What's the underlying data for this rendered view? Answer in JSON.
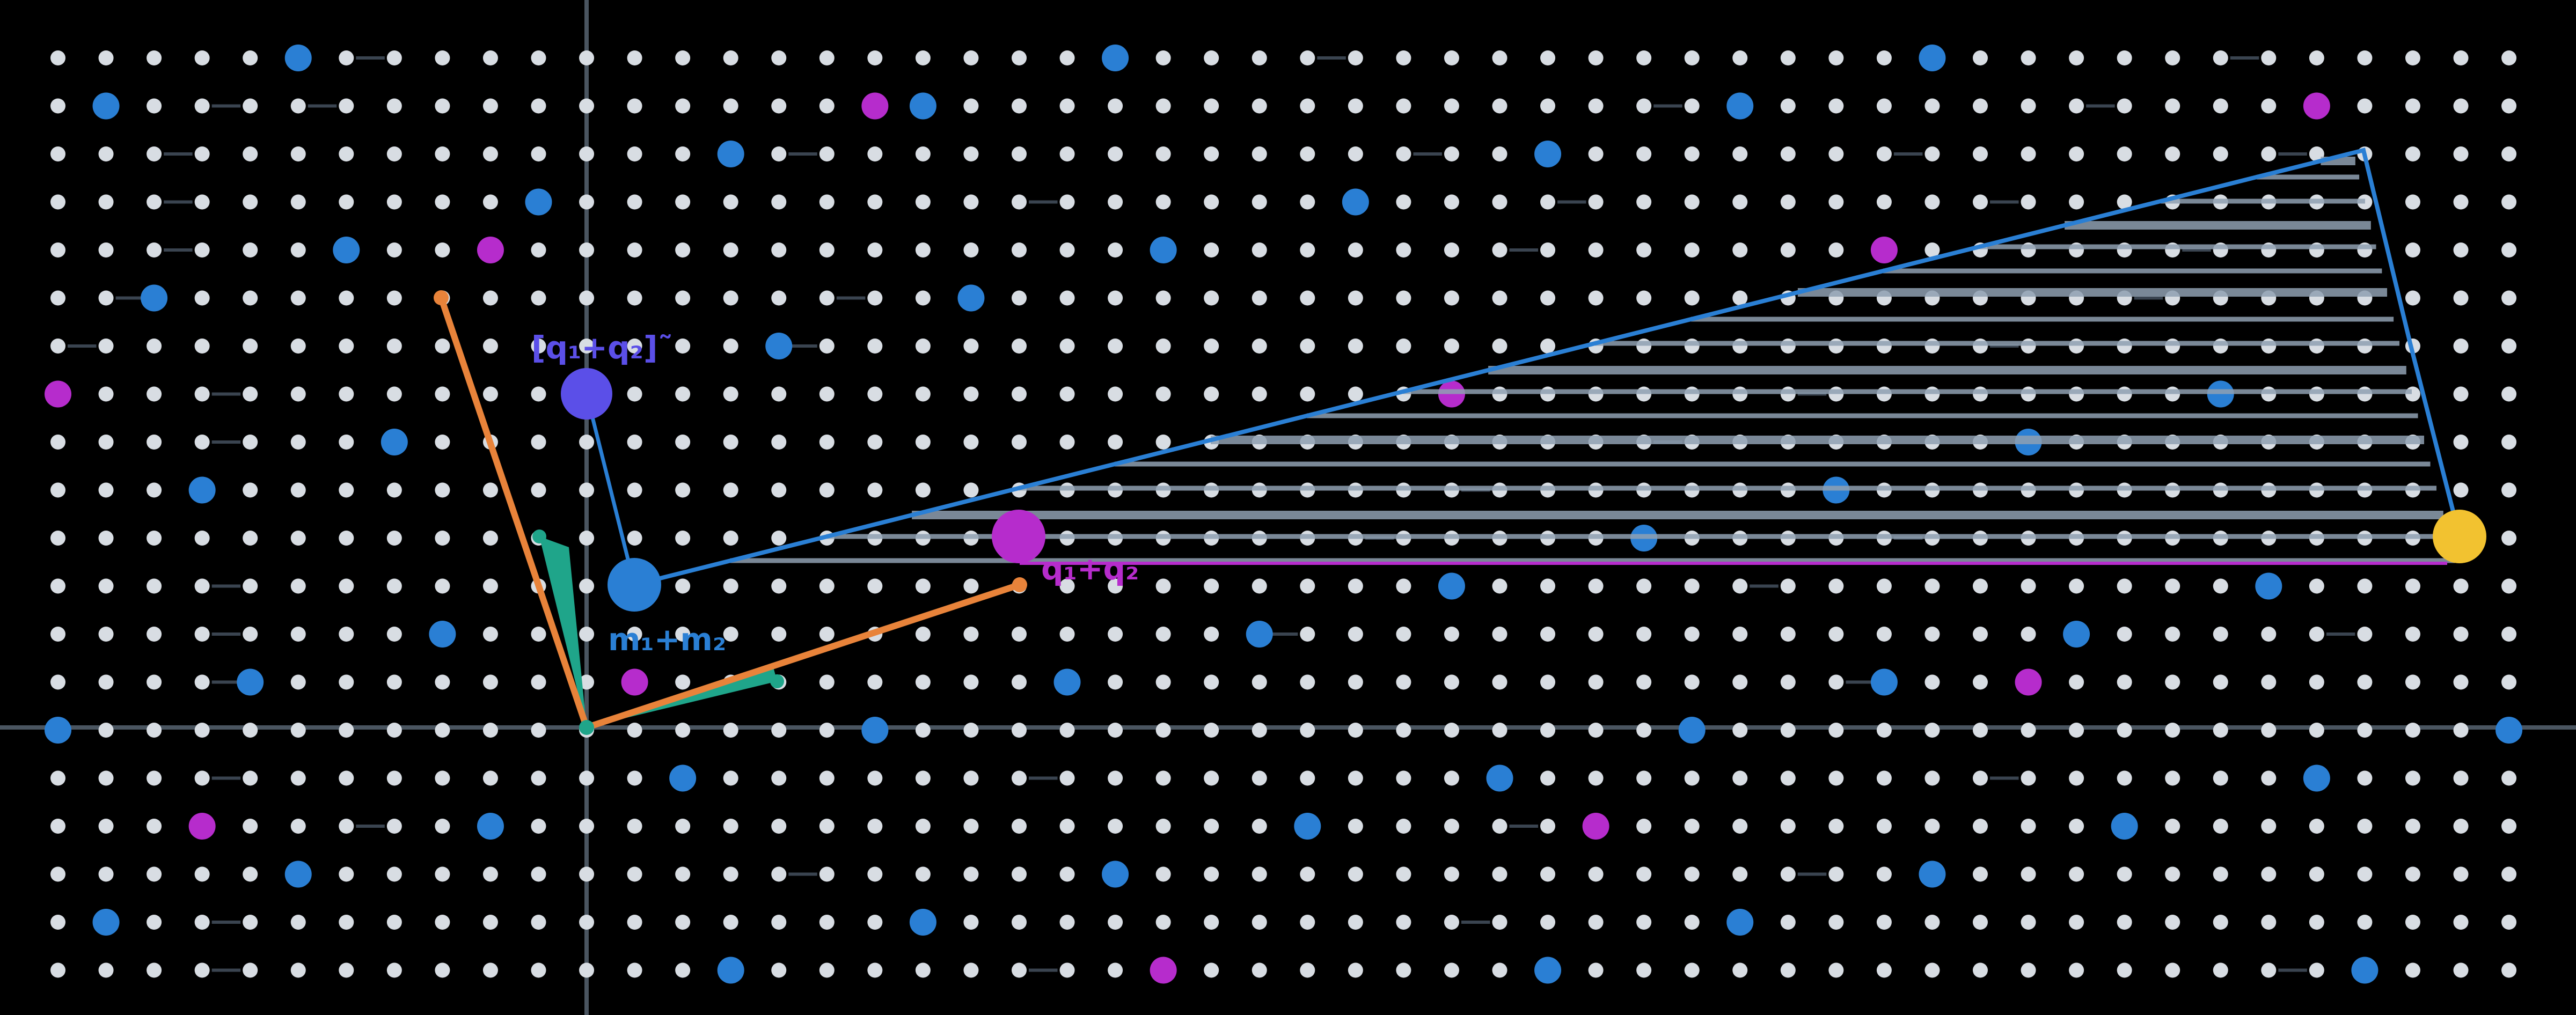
{
  "colors": {
    "background": "#000000",
    "lattice_dot": "#d8dde3",
    "axis": "#4a5560",
    "blue": "#2a7fd4",
    "magenta": "#b62ccc",
    "violet": "#5b4fe8",
    "orange": "#e8833a",
    "teal": "#1fa58a",
    "gold": "#f2c230",
    "hatch": "#8fa0b2",
    "polygon_edge": "#2a7fd4",
    "magenta_line": "#b62ccc"
  },
  "labels": {
    "eps_tilde": "[q₁+q₂]˜",
    "m_sum": "m₁+m₂",
    "q_sum": "q₁+q₂"
  },
  "icons": {
    "origin": "origin-marker",
    "gold_point": "gold-node",
    "violet_point": "violet-node"
  }
}
